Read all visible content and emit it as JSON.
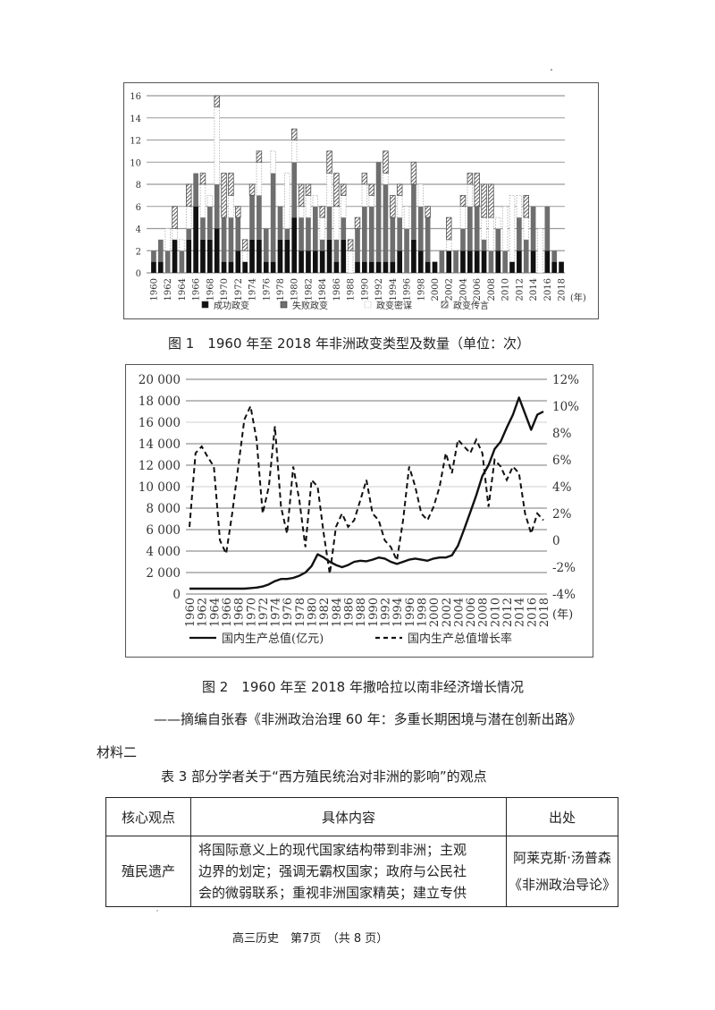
{
  "figure1": {
    "caption": "图 1　1960 年至 2018 年非洲政变类型及数量（单位：次）",
    "year_unit": "(年)",
    "legend": [
      "成功政变",
      "失败政变",
      "政变密谋",
      "政变传言"
    ]
  },
  "figure2": {
    "caption": "图 2　1960 年至 2018 年撒哈拉以南非经济增长情况",
    "year_unit": "(年)",
    "legend": [
      "国内生产总值(亿元)",
      "国内生产总值增长率"
    ]
  },
  "source": "——摘编自张春《非洲政治治理 60 年：多重长期困境与潜在创新出路》",
  "material_label": "材料二",
  "table3": {
    "title": "表 3  部分学者关于“西方殖民统治对非洲的影响”的观点",
    "headers": [
      "核心观点",
      "具体内容",
      "出处"
    ],
    "rows": [
      {
        "core": "殖民遗产",
        "content_lines": [
          "将国际意义上的现代国家结构带到非洲；主观",
          "边界的划定；强调无霸权国家；政府与公民社",
          "会的微弱联系；重视非洲国家精英；建立专供"
        ],
        "source_lines": [
          "阿莱克斯·汤普森",
          "《非洲政治导论》"
        ]
      }
    ]
  },
  "footer": "高三历史　第7页　（共 8 页）",
  "chart_data": [
    {
      "type": "bar",
      "stacked": true,
      "title": "1960 年至 2018 年非洲政变类型及数量（单位：次）",
      "xlabel": "(年)",
      "ylabel": "",
      "ylim": [
        0,
        16
      ],
      "yticks": [
        0,
        2,
        4,
        6,
        8,
        10,
        12,
        14,
        16
      ],
      "grid": true,
      "legend_position": "bottom",
      "categories": [
        "1960",
        "1961",
        "1962",
        "1963",
        "1964",
        "1965",
        "1966",
        "1967",
        "1968",
        "1969",
        "1970",
        "1971",
        "1972",
        "1973",
        "1974",
        "1975",
        "1976",
        "1977",
        "1978",
        "1979",
        "1980",
        "1981",
        "1982",
        "1983",
        "1984",
        "1985",
        "1986",
        "1987",
        "1988",
        "1989",
        "1990",
        "1991",
        "1992",
        "1993",
        "1994",
        "1995",
        "1996",
        "1997",
        "1998",
        "1999",
        "2000",
        "2001",
        "2002",
        "2003",
        "2004",
        "2005",
        "2006",
        "2007",
        "2008",
        "2009",
        "2010",
        "2011",
        "2012",
        "2013",
        "2014",
        "2015",
        "2016",
        "2017",
        "2018"
      ],
      "tick_labels": [
        "1960",
        "1962",
        "1964",
        "1966",
        "1968",
        "1970",
        "1972",
        "1974",
        "1976",
        "1978",
        "1980",
        "1982",
        "1984",
        "1986",
        "1988",
        "1990",
        "1992",
        "1994",
        "1996",
        "1998",
        "2000",
        "2002",
        "2004",
        "2006",
        "2008",
        "2010",
        "2012",
        "2014",
        "2016",
        "2018"
      ],
      "series": [
        {
          "name": "成功政变",
          "color": "#111111",
          "values": [
            1,
            1,
            0,
            3,
            0,
            3,
            6,
            3,
            3,
            4,
            1,
            1,
            2,
            1,
            3,
            3,
            1,
            1,
            3,
            3,
            5,
            2,
            2,
            2,
            2,
            3,
            1,
            3,
            0,
            1,
            1,
            1,
            1,
            1,
            1,
            2,
            0,
            3,
            2,
            1,
            1,
            0,
            2,
            0,
            2,
            2,
            2,
            2,
            0,
            2,
            0,
            1,
            2,
            0,
            2,
            0,
            2,
            1,
            1
          ]
        },
        {
          "name": "失败政变",
          "color": "#6e6e6e",
          "values": [
            1,
            2,
            2,
            0,
            2,
            1,
            3,
            2,
            3,
            4,
            4,
            4,
            3,
            0,
            4,
            4,
            3,
            8,
            3,
            1,
            5,
            3,
            3,
            4,
            1,
            3,
            2,
            2,
            0,
            3,
            5,
            5,
            9,
            7,
            4,
            3,
            4,
            5,
            4,
            4,
            0,
            2,
            0,
            2,
            2,
            4,
            4,
            1,
            2,
            2,
            2,
            0,
            3,
            3,
            4,
            0,
            4,
            1,
            0
          ]
        },
        {
          "name": "政变密谋",
          "color": "#ffffff",
          "values": [
            0,
            0,
            2,
            1,
            1,
            2,
            0,
            3,
            1,
            7,
            0,
            2,
            0,
            1,
            0,
            3,
            0,
            2,
            0,
            5,
            2,
            1,
            2,
            1,
            2,
            3,
            3,
            2,
            2,
            0,
            2,
            1,
            0,
            1,
            0,
            2,
            2,
            0,
            2,
            0,
            0,
            0,
            1,
            0,
            2,
            2,
            0,
            2,
            3,
            1,
            4,
            6,
            2,
            2,
            0,
            4,
            0,
            0,
            0
          ]
        },
        {
          "name": "政变传言",
          "color": "hatch",
          "values": [
            0,
            0,
            0,
            2,
            0,
            2,
            0,
            1,
            0,
            1,
            4,
            2,
            1,
            1,
            1,
            1,
            0,
            0,
            0,
            0,
            1,
            2,
            1,
            0,
            1,
            2,
            3,
            1,
            1,
            1,
            1,
            1,
            0,
            2,
            2,
            1,
            0,
            2,
            0,
            1,
            0,
            0,
            2,
            0,
            1,
            1,
            3,
            3,
            3,
            0,
            0,
            0,
            0,
            2,
            0,
            0,
            0,
            0,
            0
          ]
        }
      ],
      "totals": [
        2,
        3,
        4,
        6,
        3,
        8,
        9,
        9,
        7,
        16,
        9,
        9,
        6,
        3,
        8,
        11,
        4,
        11,
        6,
        9,
        13,
        8,
        8,
        7,
        6,
        11,
        9,
        8,
        3,
        5,
        9,
        8,
        10,
        11,
        7,
        8,
        6,
        10,
        8,
        6,
        1,
        2,
        5,
        2,
        7,
        9,
        9,
        8,
        8,
        5,
        6,
        7,
        7,
        7,
        6,
        4,
        6,
        2,
        1
      ]
    },
    {
      "type": "line",
      "title": "1960 年至 2018 年撒哈拉以南非经济增长情况",
      "xlabel": "(年)",
      "ylabel_left": "国内生产总值(亿元)",
      "ylabel_right": "国内生产总值增长率",
      "ylim_left": [
        0,
        20000
      ],
      "yticks_left": [
        "0",
        "2 000",
        "4 000",
        "6 000",
        "8 000",
        "10 000",
        "12 000",
        "14 000",
        "16 000",
        "18 000",
        "20 000"
      ],
      "ylim_right": [
        -4,
        12
      ],
      "yticks_right": [
        "-4%",
        "-2%",
        "0",
        "2%",
        "4%",
        "6%",
        "8%",
        "10%",
        "12%"
      ],
      "grid": true,
      "legend_position": "bottom",
      "x": [
        1960,
        1961,
        1962,
        1963,
        1964,
        1965,
        1966,
        1967,
        1968,
        1969,
        1970,
        1971,
        1972,
        1973,
        1974,
        1975,
        1976,
        1977,
        1978,
        1979,
        1980,
        1981,
        1982,
        1983,
        1984,
        1985,
        1986,
        1987,
        1988,
        1989,
        1990,
        1991,
        1992,
        1993,
        1994,
        1995,
        1996,
        1997,
        1998,
        1999,
        2000,
        2001,
        2002,
        2003,
        2004,
        2005,
        2006,
        2007,
        2008,
        2009,
        2010,
        2011,
        2012,
        2013,
        2014,
        2015,
        2016,
        2017,
        2018
      ],
      "series": [
        {
          "name": "国内生产总值(亿元)",
          "style": "solid",
          "axis": "left",
          "values": [
            500,
            500,
            500,
            500,
            500,
            500,
            500,
            500,
            500,
            500,
            550,
            600,
            700,
            900,
            1200,
            1400,
            1400,
            1500,
            1700,
            2000,
            2600,
            3700,
            3400,
            3000,
            2700,
            2500,
            2700,
            3000,
            3100,
            3050,
            3200,
            3400,
            3300,
            3000,
            2800,
            3000,
            3200,
            3300,
            3200,
            3100,
            3300,
            3400,
            3400,
            3600,
            4500,
            6000,
            7600,
            9200,
            11000,
            12000,
            13500,
            14200,
            15500,
            16700,
            18300,
            16800,
            15300,
            16700,
            17000
          ]
        },
        {
          "name": "国内生产总值增长率",
          "style": "dashed",
          "axis": "right",
          "values": [
            1.0,
            6.5,
            7.0,
            6.2,
            5.5,
            0.0,
            -1.0,
            2.0,
            5.5,
            9.0,
            10.0,
            7.5,
            2.0,
            4.0,
            8.5,
            2.5,
            0.5,
            5.5,
            3.0,
            -0.5,
            4.5,
            4.0,
            0.5,
            -2.5,
            1.0,
            2.0,
            1.0,
            1.5,
            3.0,
            4.5,
            2.0,
            1.5,
            0.0,
            -0.5,
            -1.5,
            1.5,
            5.5,
            4.0,
            2.0,
            1.5,
            2.5,
            4.0,
            6.5,
            5.0,
            7.5,
            7.0,
            6.5,
            7.5,
            6.5,
            2.5,
            6.0,
            5.5,
            4.5,
            5.5,
            5.0,
            2.0,
            0.5,
            2.0,
            1.5
          ]
        }
      ]
    }
  ]
}
